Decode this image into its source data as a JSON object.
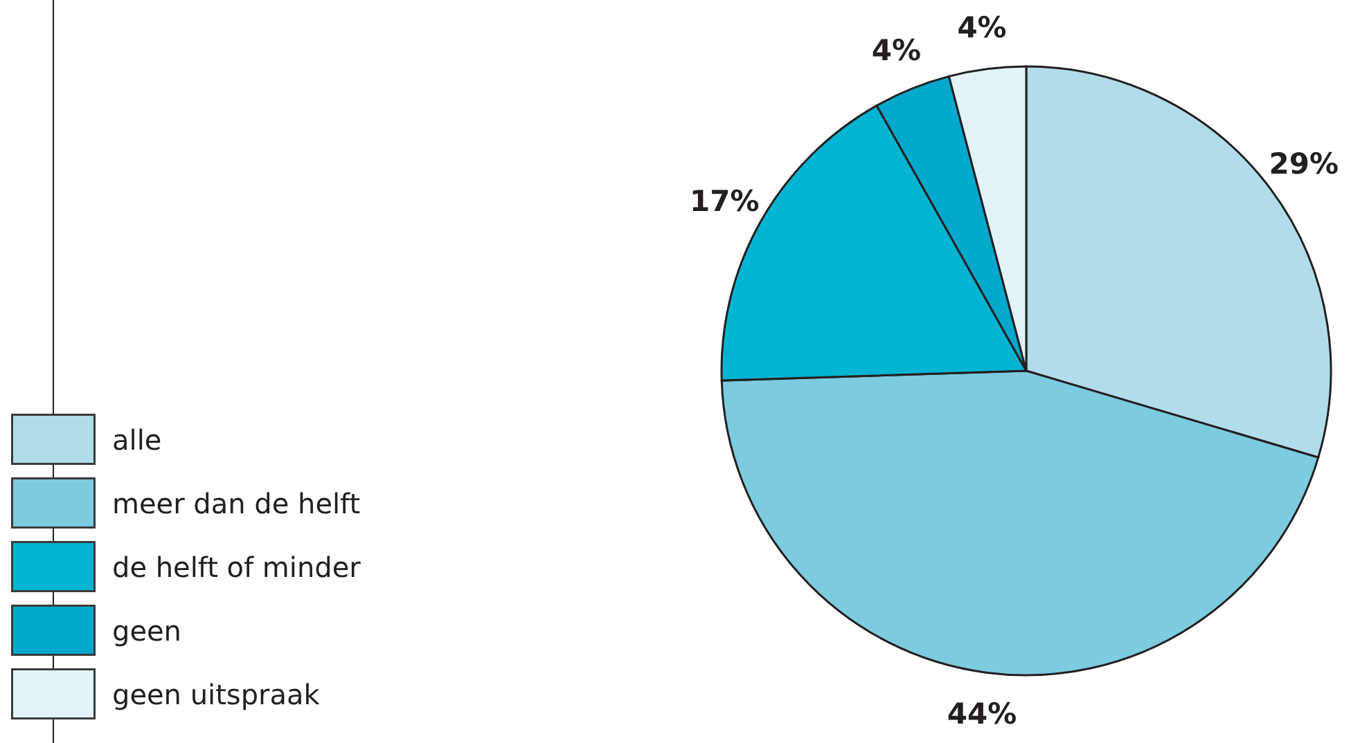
{
  "chart_data": {
    "type": "pie",
    "categories": [
      "alle",
      "meer dan de helft",
      "de helft of minder",
      "geen",
      "geen uitspraak"
    ],
    "values": [
      29,
      44,
      17,
      4,
      4
    ],
    "colors": [
      "#b0dde9",
      "#7ccbdf",
      "#00b4d2",
      "#00a8cb",
      "#e2f3f8"
    ],
    "value_labels": [
      "29%",
      "44%",
      "17%",
      "4%",
      "4%"
    ],
    "legend": "bottom left"
  }
}
